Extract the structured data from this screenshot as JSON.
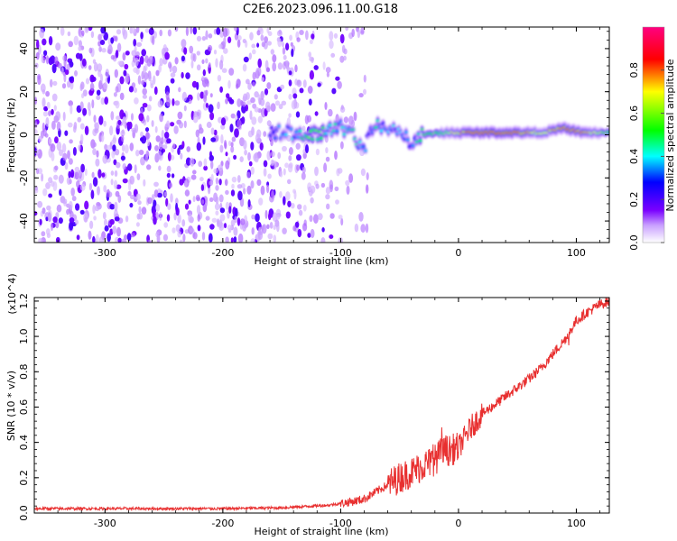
{
  "title": "C2E6.2023.096.11.00.G18",
  "chart_data": [
    {
      "type": "heatmap",
      "xlabel": "Height of straight line (km)",
      "ylabel": "Frequency (Hz)",
      "xlim": [
        -360,
        128
      ],
      "ylim": [
        -50,
        50
      ],
      "x_ticks": [
        -300,
        -200,
        -100,
        0,
        100
      ],
      "y_ticks": [
        -40,
        -20,
        0,
        20,
        40
      ],
      "colorbar": {
        "label": "Normalized spectral amplitude",
        "range": [
          0.0,
          1.0
        ],
        "ticks": [
          0.0,
          0.2,
          0.4,
          0.6,
          0.8
        ],
        "tick_labels": [
          "0.0",
          "0.2",
          "0.4",
          "0.6",
          "0.8"
        ],
        "colors": [
          "#ffffff",
          "#7a00ff",
          "#0000ff",
          "#00ffff",
          "#00ff00",
          "#ffff00",
          "#ff0000",
          "#ff0080"
        ]
      },
      "noise_region_x": [
        -360,
        -100
      ],
      "signal_ridge": [
        {
          "x": -160,
          "y": 1,
          "a": 0.3
        },
        {
          "x": -140,
          "y": 1,
          "a": 0.35
        },
        {
          "x": -125,
          "y": 0,
          "a": 0.55
        },
        {
          "x": -110,
          "y": 2,
          "a": 0.45
        },
        {
          "x": -100,
          "y": 4,
          "a": 0.35
        },
        {
          "x": -90,
          "y": 0,
          "a": 0.45
        },
        {
          "x": -80,
          "y": -6,
          "a": 0.3
        },
        {
          "x": -70,
          "y": 6,
          "a": 0.4
        },
        {
          "x": -60,
          "y": 3,
          "a": 0.35
        },
        {
          "x": -50,
          "y": 0,
          "a": 0.35
        },
        {
          "x": -40,
          "y": -3,
          "a": 0.3
        },
        {
          "x": -30,
          "y": 0,
          "a": 0.55
        },
        {
          "x": -10,
          "y": 1,
          "a": 0.65
        },
        {
          "x": 10,
          "y": 1,
          "a": 0.85
        },
        {
          "x": 30,
          "y": 1,
          "a": 0.9
        },
        {
          "x": 50,
          "y": 1,
          "a": 0.85
        },
        {
          "x": 70,
          "y": 1,
          "a": 0.7
        },
        {
          "x": 90,
          "y": 3,
          "a": 0.85
        },
        {
          "x": 105,
          "y": 1,
          "a": 0.8
        },
        {
          "x": 128,
          "y": 1,
          "a": 0.55
        }
      ]
    },
    {
      "type": "line",
      "xlabel": "Height of straight line (km)",
      "ylabel": "SNR (10 * v/v)",
      "y_multiplier_label": "(x10^4)",
      "xlim": [
        -360,
        128
      ],
      "ylim": [
        0,
        12200
      ],
      "x_ticks": [
        -300,
        -200,
        -100,
        0,
        100
      ],
      "y_ticks": [
        0,
        2000,
        4000,
        6000,
        8000,
        10000,
        12000
      ],
      "y_tick_labels": [
        "0.0",
        "0.2",
        "0.4",
        "0.6",
        "0.8",
        "1.0",
        "1.2"
      ],
      "series": [
        {
          "color": "#e83030",
          "x": [
            -360,
            -300,
            -200,
            -150,
            -110,
            -100,
            -90,
            -80,
            -70,
            -60,
            -50,
            -40,
            -30,
            -20,
            -15,
            -10,
            -5,
            0,
            10,
            20,
            30,
            40,
            50,
            60,
            70,
            80,
            90,
            95,
            100,
            110,
            120,
            128
          ],
          "y": [
            250,
            250,
            250,
            300,
            450,
            550,
            650,
            800,
            1200,
            1600,
            2000,
            2300,
            2700,
            3000,
            3400,
            3500,
            3600,
            3700,
            4800,
            5600,
            6100,
            6600,
            7100,
            7600,
            8200,
            9000,
            9800,
            10300,
            10900,
            11400,
            11800,
            12000
          ]
        }
      ]
    }
  ]
}
